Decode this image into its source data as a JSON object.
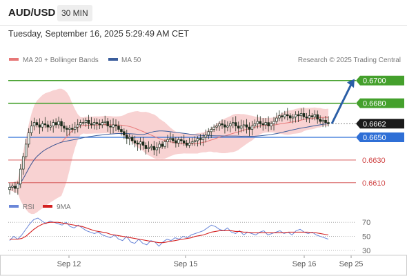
{
  "header": {
    "pair": "AUD/USD",
    "timeframe": "30 MIN",
    "datetime": "Tuesday, September 16, 2025 5:29:49 AM CET"
  },
  "legend": {
    "ma20": "MA 20 + Bollinger Bands",
    "ma50": "MA 50",
    "source": "Research © 2025 Trading Central"
  },
  "rsi_legend": {
    "rsi": "RSI",
    "ma": "9MA"
  },
  "colors": {
    "up": "#44a02c",
    "up_dark": "#3b8a25",
    "current": "#1a1a1a",
    "support": "#2f6fd6",
    "support2": "#d04545",
    "ma20": "#e77777",
    "ma50": "#3a5d9c",
    "bollinger_fill": "#f6c3c3",
    "candle": "#1b2b1b",
    "arrow": "#2a5ea6",
    "rsi": "#6a86d8",
    "rsi_ma": "#d42020"
  },
  "chart_data": {
    "type": "candlestick",
    "x_labels": [
      "Sep 12",
      "Sep 15",
      "Sep 16",
      "Sep 25"
    ],
    "ylim": [
      0.6602,
      0.6712
    ],
    "levels": [
      {
        "value": 0.67,
        "label": "0.6700",
        "kind": "resistance"
      },
      {
        "value": 0.668,
        "label": "0.6680",
        "kind": "resistance"
      },
      {
        "value": 0.6662,
        "label": "0.6662",
        "kind": "current"
      },
      {
        "value": 0.665,
        "label": "0.6650",
        "kind": "pivot"
      },
      {
        "value": 0.663,
        "label": "0.6630",
        "kind": "support"
      },
      {
        "value": 0.661,
        "label": "0.6610",
        "kind": "support"
      }
    ],
    "close_path": [
      0.6606,
      0.6607,
      0.6605,
      0.6609,
      0.6622,
      0.6633,
      0.6644,
      0.6654,
      0.666,
      0.6663,
      0.6661,
      0.6659,
      0.6662,
      0.6661,
      0.6659,
      0.666,
      0.6663,
      0.6661,
      0.6664,
      0.666,
      0.6658,
      0.6657,
      0.6658,
      0.6657,
      0.6659,
      0.6661,
      0.6663,
      0.6663,
      0.6665,
      0.6662,
      0.6661,
      0.6663,
      0.6662,
      0.6661,
      0.6663,
      0.6664,
      0.666,
      0.6659,
      0.6661,
      0.666,
      0.6657,
      0.6655,
      0.6652,
      0.6649,
      0.665,
      0.6647,
      0.6645,
      0.6644,
      0.6646,
      0.6643,
      0.664,
      0.6641,
      0.6642,
      0.6639,
      0.6641,
      0.6644,
      0.6642,
      0.6646,
      0.6648,
      0.6649,
      0.6647,
      0.6645,
      0.6648,
      0.6647,
      0.6645,
      0.6643,
      0.6645,
      0.6646,
      0.6647,
      0.6649,
      0.6648,
      0.665,
      0.6652,
      0.6655,
      0.6657,
      0.6659,
      0.666,
      0.6662,
      0.6661,
      0.6659,
      0.666,
      0.6662,
      0.6663,
      0.666,
      0.6658,
      0.666,
      0.6661,
      0.6659,
      0.6657,
      0.666,
      0.6662,
      0.6664,
      0.6662,
      0.6661,
      0.6663,
      0.666,
      0.6662,
      0.6664,
      0.6667,
      0.6669,
      0.6668,
      0.667,
      0.6669,
      0.6667,
      0.6668,
      0.667,
      0.6669,
      0.6671,
      0.6668,
      0.6667,
      0.6669,
      0.6668,
      0.667,
      0.6666,
      0.6664,
      0.6665,
      0.6663,
      0.6662
    ],
    "rsi": {
      "ticks": [
        30,
        50,
        70
      ],
      "ylim": [
        25,
        80
      ],
      "rsi_values": [
        44,
        50,
        46,
        52,
        60,
        68,
        74,
        76,
        72,
        68,
        72,
        70,
        68,
        66,
        70,
        64,
        62,
        66,
        62,
        58,
        56,
        54,
        56,
        52,
        50,
        48,
        52,
        46,
        44,
        50,
        42,
        40,
        46,
        40,
        38,
        44,
        42,
        36,
        42,
        46,
        44,
        48,
        46,
        50,
        48,
        52,
        54,
        56,
        58,
        62,
        66,
        64,
        60,
        58,
        62,
        56,
        54,
        58,
        52,
        56,
        54,
        52,
        56,
        58,
        52,
        54,
        56,
        58,
        54,
        56,
        52,
        58,
        60,
        56,
        54,
        56,
        52,
        50,
        48,
        46
      ],
      "ma_values": [
        46,
        46,
        46,
        47,
        50,
        55,
        60,
        64,
        67,
        69,
        70,
        70,
        70,
        69,
        68,
        67,
        66,
        65,
        64,
        62,
        60,
        58,
        57,
        56,
        55,
        53,
        52,
        51,
        50,
        49,
        48,
        47,
        46,
        45,
        44,
        43,
        42,
        41,
        41,
        42,
        43,
        44,
        45,
        46,
        47,
        48,
        50,
        51,
        52,
        54,
        56,
        57,
        58,
        58,
        58,
        58,
        57,
        57,
        56,
        56,
        55,
        55,
        55,
        55,
        55,
        55,
        55,
        55,
        55,
        56,
        56,
        56,
        56,
        56,
        56,
        55,
        55,
        54,
        53,
        52
      ]
    }
  }
}
